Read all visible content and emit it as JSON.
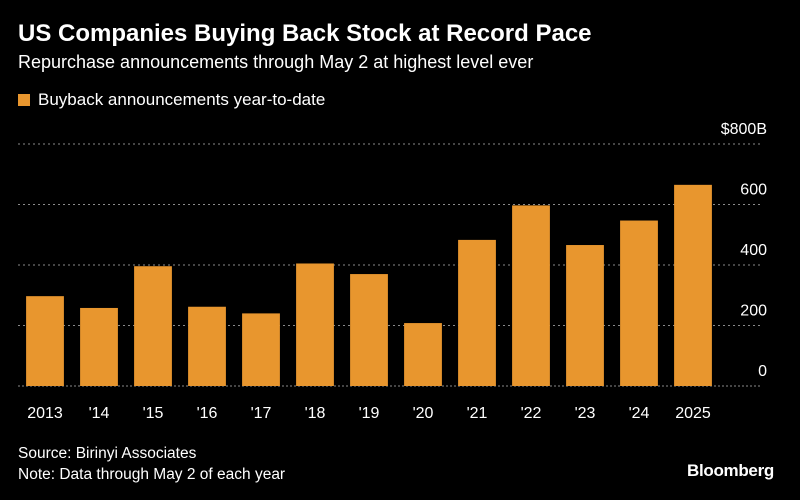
{
  "header": {
    "title": "US Companies Buying Back Stock at Record Pace",
    "subtitle": "Repurchase announcements through May 2 at highest level ever"
  },
  "footer": {
    "source": "Source: Birinyi Associates",
    "note": "Note: Data through May 2 of each year",
    "logo": "Bloomberg"
  },
  "colors": {
    "bar": "#E8962E",
    "grid": "#8a8a8a",
    "background": "#000000",
    "text": "#ffffff"
  },
  "chart_data": {
    "type": "bar",
    "title": "US Companies Buying Back Stock at Record Pace",
    "subtitle": "Repurchase announcements through May 2 at highest level ever",
    "categories": [
      "2013",
      "'14",
      "'15",
      "'16",
      "'17",
      "'18",
      "'19",
      "'20",
      "'21",
      "'22",
      "'23",
      "'24",
      "2025"
    ],
    "series": [
      {
        "name": "Buyback announcements year-to-date",
        "values": [
          297,
          258,
          396,
          262,
          240,
          405,
          370,
          208,
          483,
          597,
          466,
          547,
          665
        ]
      }
    ],
    "y_ticks": [
      {
        "value": 0,
        "label": "0"
      },
      {
        "value": 200,
        "label": "200"
      },
      {
        "value": 400,
        "label": "400"
      },
      {
        "value": 600,
        "label": "600"
      },
      {
        "value": 800,
        "label": "$800B"
      }
    ],
    "ylim": [
      0,
      800
    ],
    "y_axis_side": "right",
    "grid": true,
    "grid_style": "dotted",
    "legend_position": "top-left",
    "xlabel": "",
    "ylabel": ""
  }
}
